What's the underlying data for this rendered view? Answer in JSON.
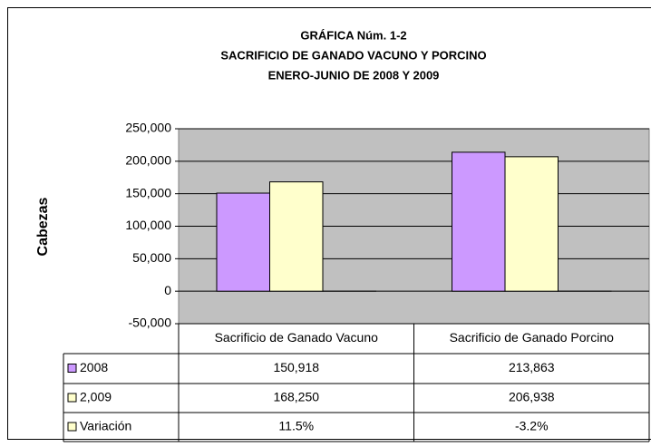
{
  "chart_data": {
    "type": "bar",
    "title": "GRÁFICA Núm. 1-2",
    "subtitle": [
      "SACRIFICIO DE GANADO VACUNO Y PORCINO",
      "ENERO-JUNIO DE 2008 Y 2009"
    ],
    "y_label": "Cabezas",
    "categories": [
      "Sacrificio de Ganado Vacuno",
      "Sacrificio de Ganado Porcino"
    ],
    "series": [
      {
        "name": "2008",
        "color": "#cc99ff",
        "values": [
          150918,
          213863
        ],
        "value_labels": [
          "150,918",
          "213,863"
        ]
      },
      {
        "name": "2,009",
        "color": "#ffffcc",
        "values": [
          168250,
          206938
        ],
        "value_labels": [
          "168,250",
          "206,938"
        ]
      },
      {
        "name": "Variación",
        "color": "#ffffcc",
        "values": [
          11.5,
          -3.2
        ],
        "value_labels": [
          "11.5%",
          "-3.2%"
        ]
      }
    ],
    "ylim": [
      -50000,
      250000
    ],
    "yticks": [
      {
        "value": -50000,
        "label": "-50,000"
      },
      0,
      {
        "value": 50000,
        "label": "50,000"
      },
      {
        "value": 100000,
        "label": "100,000"
      },
      {
        "value": 150000,
        "label": "150,000"
      },
      {
        "value": 200000,
        "label": "200,000"
      },
      {
        "value": 250000,
        "label": "250,000"
      }
    ],
    "grid": true,
    "plot_background": "#c0c0c0"
  }
}
